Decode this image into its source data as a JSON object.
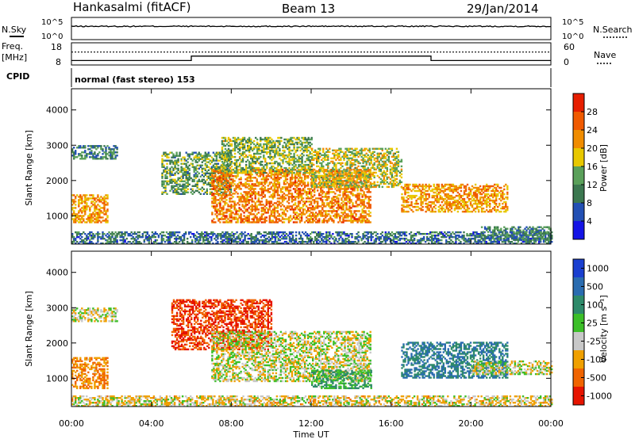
{
  "header": {
    "station": "Hankasalmi (fitACF)",
    "beam": "Beam 13",
    "date": "29/Jan/2014"
  },
  "noise_panel": {
    "left_label": "N.Sky",
    "right_label": "N.Search",
    "tick_top": "10^5",
    "tick_bottom": "10^0"
  },
  "freq_panel": {
    "left_label_1": "Freq.",
    "left_label_2": "[MHz]",
    "left_ticks": [
      "18",
      "8"
    ],
    "right_label": "Nave",
    "right_ticks": [
      "60",
      "0"
    ]
  },
  "cpid": {
    "label": "CPID",
    "text": "normal (fast stereo) 153"
  },
  "x_axis": {
    "label": "Time UT",
    "ticks": [
      "00:00",
      "04:00",
      "08:00",
      "12:00",
      "16:00",
      "20:00",
      "00:00"
    ]
  },
  "power_panel": {
    "ylabel": "Slant Range [km]",
    "yticks": [
      "1000",
      "2000",
      "3000",
      "4000"
    ],
    "colorbar_label": "Power [dB]",
    "colorbar_ticks": [
      "4",
      "8",
      "12",
      "16",
      "20",
      "24",
      "28"
    ],
    "colors": [
      "#1414e6",
      "#2350b4",
      "#3c7850",
      "#5aa05a",
      "#e8c800",
      "#f08c00",
      "#f05a00",
      "#e61e00"
    ]
  },
  "velocity_panel": {
    "ylabel": "Slant Range [km]",
    "yticks": [
      "1000",
      "2000",
      "3000",
      "4000"
    ],
    "colorbar_label": "Velocity [m s⁻¹]",
    "colorbar_ticks": [
      "1000",
      "500",
      "100",
      "25",
      "-25",
      "-100",
      "-500",
      "-1000"
    ],
    "colors": [
      "#1a3fd0",
      "#2a6cb0",
      "#2e8a6a",
      "#3cbf28",
      "#c8c8c8",
      "#f0a000",
      "#f06400",
      "#e61400"
    ]
  },
  "chart_data": {
    "type": "heatmap",
    "title": "Hankasalmi (fitACF) Beam 13 29/Jan/2014",
    "xlabel": "Time UT",
    "ylabel": "Slant Range [km]",
    "xlim_hours": [
      0,
      24
    ],
    "ylim_km": [
      200,
      4600
    ],
    "noise": {
      "scale": "log",
      "range": [
        "10^0",
        "10^5"
      ],
      "level": "10^3"
    },
    "frequency_mhz": {
      "range": [
        8,
        18
      ],
      "segments": [
        [
          0,
          6,
          10.0
        ],
        [
          6,
          18,
          12.0
        ],
        [
          18,
          24,
          10.0
        ]
      ]
    },
    "nave": {
      "range": [
        0,
        60
      ],
      "level": 35
    },
    "power_db": {
      "range": [
        0,
        30
      ],
      "regions": [
        {
          "t": [
            0.0,
            1.8
          ],
          "r": [
            800,
            1600
          ],
          "value": 20
        },
        {
          "t": [
            0.0,
            2.3
          ],
          "r": [
            2600,
            3000
          ],
          "value": 10
        },
        {
          "t": [
            0.0,
            24.0
          ],
          "r": [
            200,
            550
          ],
          "value": 8
        },
        {
          "t": [
            4.5,
            8.0
          ],
          "r": [
            1600,
            2800
          ],
          "value": 12
        },
        {
          "t": [
            7.0,
            15.0
          ],
          "r": [
            800,
            2300
          ],
          "value": 22
        },
        {
          "t": [
            7.5,
            12.0
          ],
          "r": [
            2200,
            3200
          ],
          "value": 14
        },
        {
          "t": [
            12.0,
            16.5
          ],
          "r": [
            1800,
            2900
          ],
          "value": 16
        },
        {
          "t": [
            16.5,
            21.8
          ],
          "r": [
            1100,
            1900
          ],
          "value": 20
        },
        {
          "t": [
            20.5,
            24.0
          ],
          "r": [
            300,
            700
          ],
          "value": 10
        }
      ]
    },
    "velocity_ms": {
      "levels": [
        1000,
        500,
        100,
        25,
        -25,
        -100,
        -500,
        -1000
      ],
      "regions": [
        {
          "t": [
            0.0,
            1.8
          ],
          "r": [
            700,
            1600
          ],
          "value": -100
        },
        {
          "t": [
            0.0,
            2.3
          ],
          "r": [
            2600,
            3000
          ],
          "value": 0
        },
        {
          "t": [
            5.0,
            10.0
          ],
          "r": [
            1800,
            3200
          ],
          "value": -500
        },
        {
          "t": [
            7.0,
            15.0
          ],
          "r": [
            900,
            2300
          ],
          "value": 0
        },
        {
          "t": [
            12.0,
            15.0
          ],
          "r": [
            700,
            1200
          ],
          "value": 100
        },
        {
          "t": [
            16.5,
            21.8
          ],
          "r": [
            1000,
            2000
          ],
          "value": 500
        },
        {
          "t": [
            20.0,
            24.0
          ],
          "r": [
            1100,
            1500
          ],
          "value": 0
        },
        {
          "t": [
            0.0,
            24.0
          ],
          "r": [
            200,
            500
          ],
          "value": -25
        }
      ]
    }
  }
}
